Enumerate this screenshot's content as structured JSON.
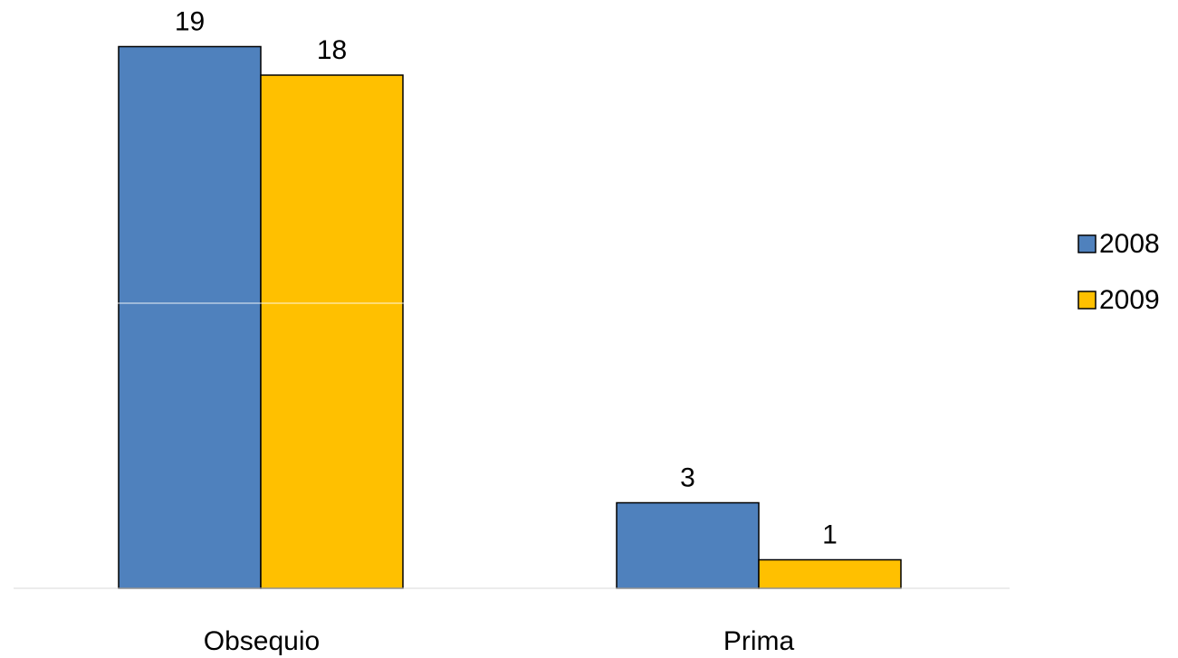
{
  "chart_data": {
    "type": "bar",
    "title": "",
    "xlabel": "",
    "ylabel": "",
    "categories": [
      "Obsequio",
      "Prima"
    ],
    "series": [
      {
        "name": "2008",
        "values": [
          19,
          3
        ],
        "color": "#4F81BD"
      },
      {
        "name": "2009",
        "values": [
          18,
          1
        ],
        "color": "#FFC000"
      }
    ],
    "ylim": [
      0,
      20
    ],
    "grid": true,
    "legend": "right",
    "data_labels": true
  }
}
